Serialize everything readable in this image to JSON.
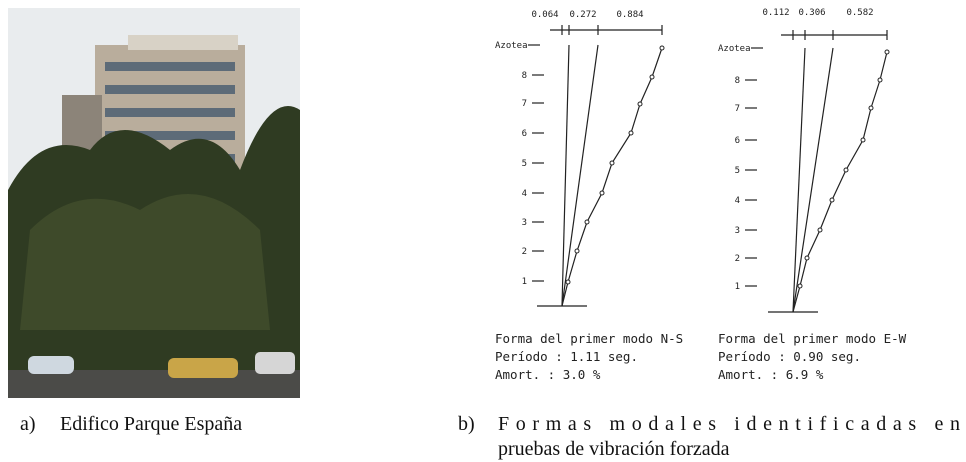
{
  "figure": {
    "photo": {
      "label": "a)",
      "caption": "Edifico Parque España"
    },
    "modes": {
      "label": "b)",
      "caption_lines": [
        "Formas modales identificadas en",
        "pruebas de vibración forzada"
      ],
      "diagrams": [
        {
          "top_labels": [
            "0.064",
            "0.272",
            "0.884"
          ],
          "roof_label": "Azotea",
          "floor_labels": [
            "8",
            "7",
            "6",
            "5",
            "4",
            "3",
            "2",
            "1"
          ],
          "notes": [
            "Forma del primer modo N-S",
            "Período  : 1.11 seg.",
            "Amort.  : 3.0 %"
          ]
        },
        {
          "top_labels": [
            "0.112",
            "0.306",
            "0.582"
          ],
          "roof_label": "Azotea",
          "floor_labels": [
            "8",
            "7",
            "6",
            "5",
            "4",
            "3",
            "2",
            "1"
          ],
          "notes": [
            "Forma del primer modo E-W",
            "Período : 0.90 seg.",
            "Amort. : 6.9 %"
          ]
        }
      ]
    }
  }
}
